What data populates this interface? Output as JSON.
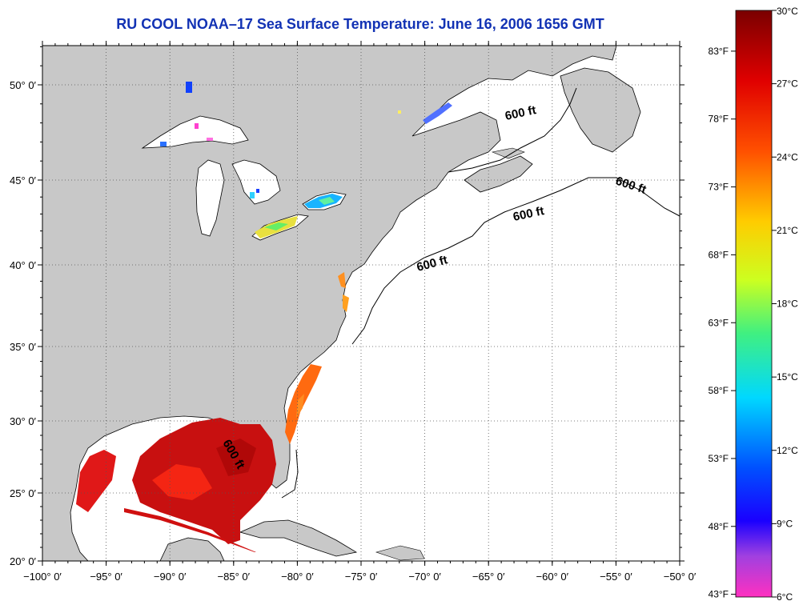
{
  "title": "RU COOL  NOAA–17  Sea Surface Temperature:  June 16, 2006 1656 GMT",
  "x_ticks": [
    "−100° 0′",
    "−95° 0′",
    "−90° 0′",
    "−85° 0′",
    "−80° 0′",
    "−75° 0′",
    "−70° 0′",
    "−65° 0′",
    "−60° 0′",
    "−55° 0′",
    "−50° 0′"
  ],
  "y_ticks": [
    "50° 0′",
    "45° 0′",
    "40° 0′",
    "35° 0′",
    "30° 0′",
    "25° 0′",
    "20° 0′"
  ],
  "contour_label": "600 ft",
  "colorbar": {
    "celsius": [
      "30°C",
      "27°C",
      "24°C",
      "21°C",
      "18°C",
      "15°C",
      "12°C",
      "9°C",
      "6°C"
    ],
    "fahrenheit": [
      "83°F",
      "78°F",
      "73°F",
      "68°F",
      "63°F",
      "58°F",
      "53°F",
      "48°F",
      "43°F"
    ],
    "colors": [
      "#7a0000",
      "#ff2000",
      "#ff8c00",
      "#ffff00",
      "#44f060",
      "#00e0ff",
      "#0070ff",
      "#1a00ff",
      "#9a40e0",
      "#ff30c0"
    ]
  }
}
